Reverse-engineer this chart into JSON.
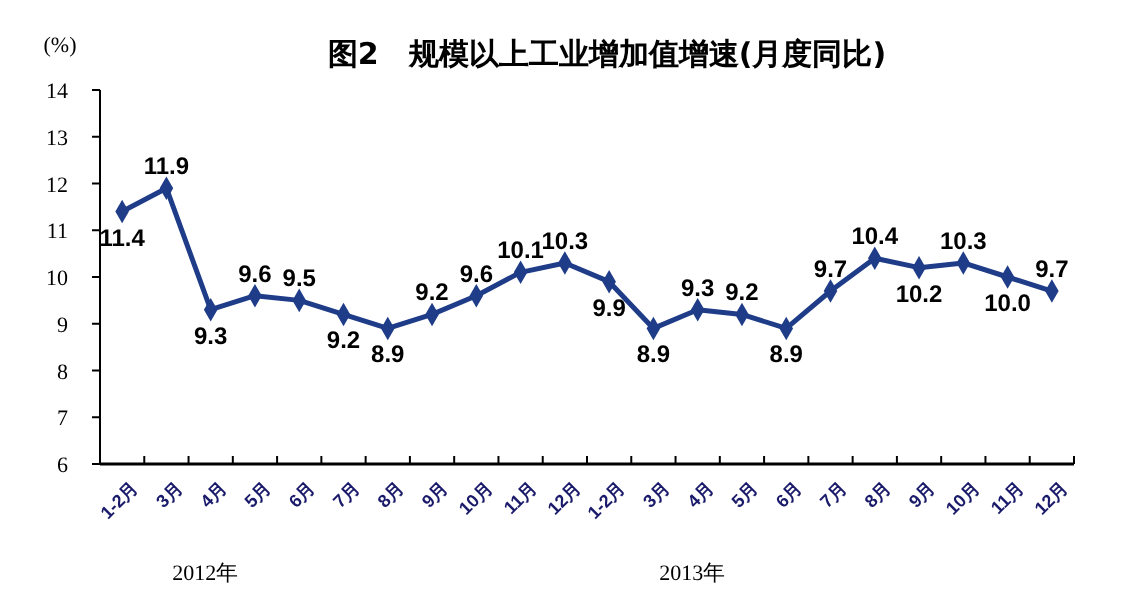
{
  "chart_data": {
    "type": "line",
    "title": "图2　规模以上工业增加值增速(月度同比)",
    "ylabel": "(%)",
    "categories": [
      "1-2月",
      "3月",
      "4月",
      "5月",
      "6月",
      "7月",
      "8月",
      "9月",
      "10月",
      "11月",
      "12月",
      "1-2月",
      "3月",
      "4月",
      "5月",
      "6月",
      "7月",
      "8月",
      "9月",
      "10月",
      "11月",
      "12月"
    ],
    "series": [
      {
        "color": "#1f3c88",
        "values": [
          11.4,
          11.9,
          9.3,
          9.6,
          9.5,
          9.2,
          8.9,
          9.2,
          9.6,
          10.1,
          10.3,
          9.9,
          8.9,
          9.3,
          9.2,
          8.9,
          9.7,
          10.4,
          10.2,
          10.3,
          10.0,
          9.7
        ],
        "value_labels": [
          "11.4",
          "11.9",
          "9.3",
          "9.6",
          "9.5",
          "9.2",
          "8.9",
          "9.2",
          "9.6",
          "10.1",
          "10.3",
          "9.9",
          "8.9",
          "9.3",
          "9.2",
          "8.9",
          "9.7",
          "10.4",
          "10.2",
          "10.3",
          "10.0",
          "9.7"
        ]
      }
    ],
    "ylim": [
      6,
      14
    ],
    "yticks": [
      6,
      7,
      8,
      9,
      10,
      11,
      12,
      13,
      14
    ],
    "marker": "diamond",
    "line_style": "solid",
    "grid": false,
    "annotations": [
      "2012年",
      "2013年"
    ]
  }
}
